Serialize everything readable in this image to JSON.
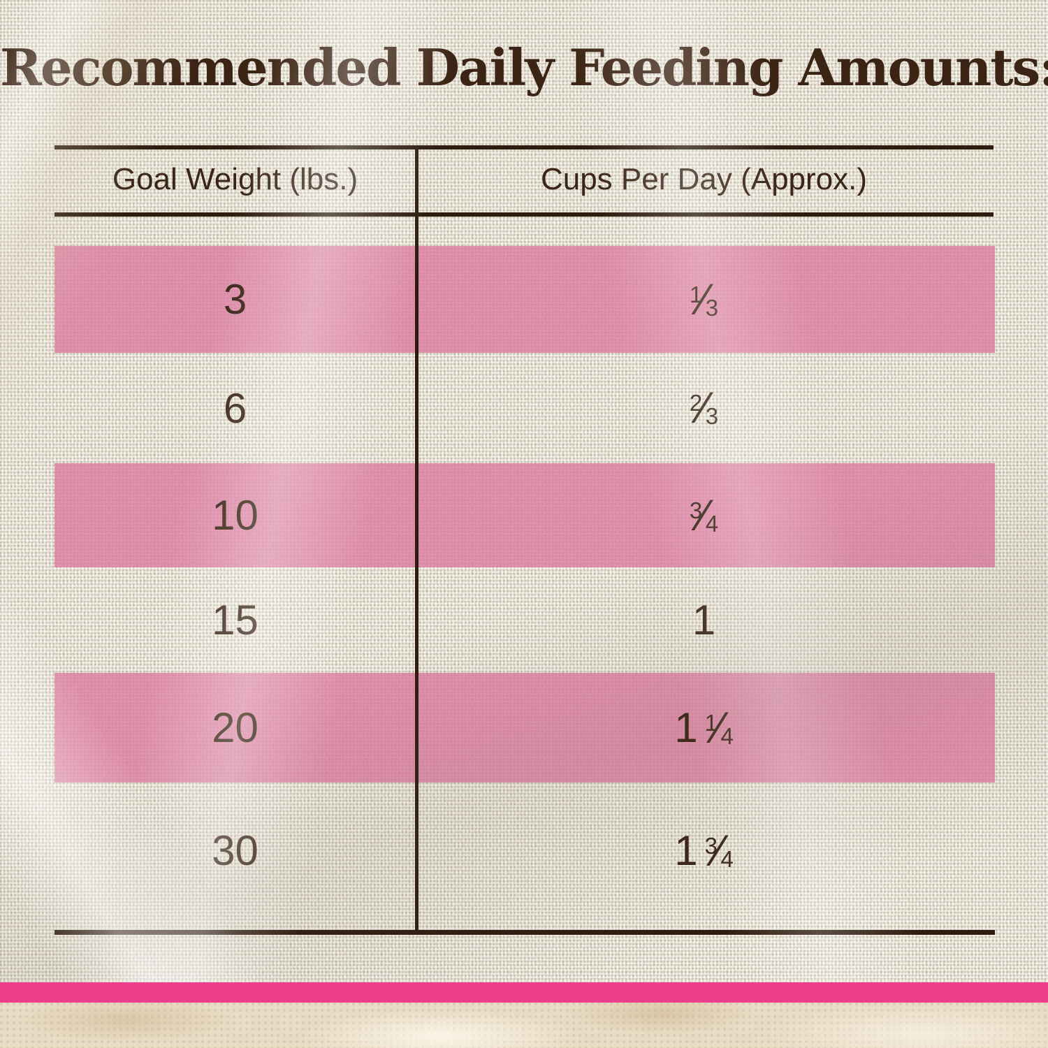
{
  "title": "Recommended Daily Feeding Amounts:",
  "fraction_slash": "⁄",
  "colors": {
    "fabric-base": "#e7e2d4",
    "ink": "#3a2516",
    "title-ink": "#3c2414",
    "line": "#2e1d0f",
    "bar-pink": "#ee3f8d",
    "marble": "#e8dcc5"
  },
  "table": {
    "columns": [
      "Goal Weight (lbs.)",
      "Cups Per Day (Approx.)"
    ],
    "rows": [
      {
        "goal_weight": "3",
        "cups_whole": "",
        "cups_frac_num": "1",
        "cups_frac_den": "3",
        "highlighted": true
      },
      {
        "goal_weight": "6",
        "cups_whole": "",
        "cups_frac_num": "2",
        "cups_frac_den": "3",
        "highlighted": false
      },
      {
        "goal_weight": "10",
        "cups_whole": "",
        "cups_frac_num": "3",
        "cups_frac_den": "4",
        "highlighted": true
      },
      {
        "goal_weight": "15",
        "cups_whole": "1",
        "cups_frac_num": "",
        "cups_frac_den": "",
        "highlighted": false
      },
      {
        "goal_weight": "20",
        "cups_whole": "1",
        "cups_frac_num": "1",
        "cups_frac_den": "4",
        "highlighted": true
      },
      {
        "goal_weight": "30",
        "cups_whole": "1",
        "cups_frac_num": "3",
        "cups_frac_den": "4",
        "highlighted": false
      }
    ]
  },
  "chart_data": {
    "type": "table",
    "title": "Recommended Daily Feeding Amounts:",
    "columns": [
      "Goal Weight (lbs.)",
      "Cups Per Day (Approx.)"
    ],
    "rows": [
      [
        "3",
        "1/3"
      ],
      [
        "6",
        "2/3"
      ],
      [
        "10",
        "3/4"
      ],
      [
        "15",
        "1"
      ],
      [
        "20",
        "1 1/4"
      ],
      [
        "30",
        "1 3/4"
      ]
    ]
  }
}
